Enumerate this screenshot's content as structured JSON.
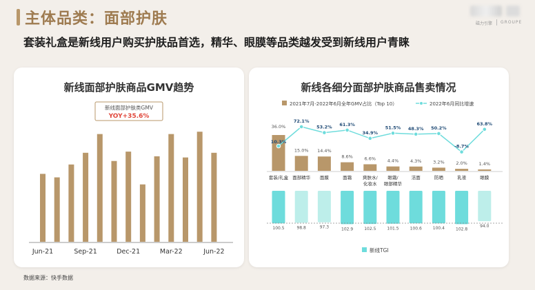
{
  "header": {
    "title": "主体品类：面部护肤",
    "subtitle": "套装礼盒是新线用户购买护肤品首选，精华、眼膜等品类越发受到新线用户青睐",
    "brand_left": "磁力引擎",
    "brand_right": "GROUPE"
  },
  "colors": {
    "gold": "#b8976a",
    "gold_light": "#e0cfb6",
    "teal": "#6edcdc",
    "teal_light": "#bdeeea",
    "red": "#e0463a",
    "text_dark": "#1e1e1e"
  },
  "footer": {
    "source": "数据来源：快手数据"
  },
  "chart_data": [
    {
      "type": "bar",
      "title": "新线面部护肤商品GMV趋势",
      "legend_box": {
        "label": "新线面部护肤类GMV",
        "yoy": "YOY+35.6%"
      },
      "tick_labels": [
        "Jun-21",
        "Sep-21",
        "Dec-21",
        "Mar-22",
        "Jun-22"
      ],
      "tick_indices": [
        0,
        3,
        6,
        9,
        12
      ],
      "values": [
        58,
        55,
        66,
        76,
        92,
        69,
        77,
        49,
        73,
        92,
        72,
        94,
        76
      ],
      "ylim": [
        0,
        100
      ]
    },
    {
      "type": "bar+line",
      "title": "新线各细分面部护肤商品售卖情况",
      "legend": {
        "bar": "2021年7月-2022年6月全年GMV占比（Top 10）",
        "line": "2022年6月同比增速",
        "tgi": "新线TGI"
      },
      "categories": [
        "套装/礼盒",
        "面部精华",
        "面膜",
        "面霜",
        "爽肤水/化妆水",
        "眼霜/眼部精华",
        "洁面",
        "防晒",
        "乳液",
        "眼膜"
      ],
      "share": [
        36.0,
        15.0,
        14.4,
        8.6,
        6.6,
        4.4,
        4.3,
        3.2,
        2.0,
        1.4
      ],
      "share_labels": [
        "36.0%",
        "15.0%",
        "14.4%",
        "8.6%",
        "6.6%",
        "4.4%",
        "4.3%",
        "3.2%",
        "2.0%",
        "1.4%"
      ],
      "growth": [
        10.3,
        72.1,
        53.2,
        61.3,
        34.9,
        51.5,
        48.3,
        50.2,
        -8.7,
        63.8
      ],
      "growth_labels": [
        "10.3%",
        "72.1%",
        "53.2%",
        "61.3%",
        "34.9%",
        "51.5%",
        "48.3%",
        "50.2%",
        "-8.7%",
        "63.8%"
      ],
      "tgi": [
        100.5,
        98.8,
        97.3,
        102.9,
        102.5,
        101.5,
        100.6,
        100.4,
        102.8,
        94.0
      ],
      "tgi_labels": [
        "100.5",
        "98.8",
        "97.3",
        "102.9",
        "102.5",
        "101.5",
        "100.6",
        "100.4",
        "102.8",
        "94.0"
      ],
      "tgi_baseline": 100
    }
  ]
}
